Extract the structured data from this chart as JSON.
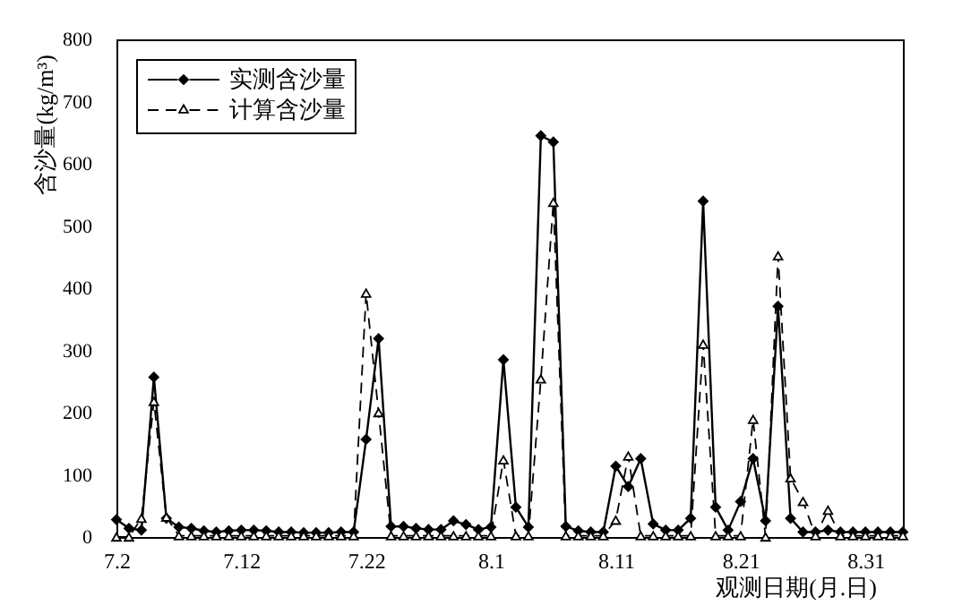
{
  "chart_data": {
    "type": "line",
    "xlabel": "观测日期(月.日)",
    "ylabel": "含沙量(kg/m³)",
    "x": [
      "--07-02",
      "--07-03",
      "--07-04",
      "--07-05",
      "--07-06",
      "--07-07",
      "--07-08",
      "--07-09",
      "--07-10",
      "--07-11",
      "--07-12",
      "--07-13",
      "--07-14",
      "--07-15",
      "--07-16",
      "--07-17",
      "--07-18",
      "--07-19",
      "--07-20",
      "--07-21",
      "--07-22",
      "--07-23",
      "--07-24",
      "--07-25",
      "--07-26",
      "--07-27",
      "--07-28",
      "--07-29",
      "--07-30",
      "--07-31",
      "--08-01",
      "--08-02",
      "--08-03",
      "--08-04",
      "--08-05",
      "--08-06",
      "--08-07",
      "--08-08",
      "--08-09",
      "--08-10",
      "--08-11",
      "--08-12",
      "--08-13",
      "--08-14",
      "--08-15",
      "--08-16",
      "--08-17",
      "--08-18",
      "--08-19",
      "--08-20",
      "--08-21",
      "--08-22",
      "--08-23",
      "--08-24",
      "--08-25",
      "--08-26",
      "--08-27",
      "--08-28",
      "--08-29",
      "--08-30",
      "--08-31",
      "--09-01",
      "--09-02",
      "--09-03"
    ],
    "series": [
      {
        "name": "实测含沙量",
        "color": "#000000",
        "marker": "diamond",
        "line_style": "solid",
        "values": [
          28,
          14,
          11,
          257,
          30,
          16,
          14,
          10,
          8,
          10,
          11,
          11,
          10,
          8,
          8,
          7,
          7,
          7,
          8,
          8,
          157,
          319,
          17,
          17,
          14,
          12,
          12,
          26,
          20,
          12,
          16,
          285,
          48,
          16,
          645,
          635,
          17,
          10,
          8,
          8,
          114,
          81,
          126,
          21,
          11,
          11,
          30,
          540,
          48,
          11,
          57,
          126,
          26,
          371,
          30,
          8,
          8,
          11,
          8,
          8,
          8,
          8,
          8,
          8
        ]
      },
      {
        "name": "计算含沙量",
        "color": "#000000",
        "marker": "triangle",
        "line_style": "dashed",
        "values": [
          0,
          0,
          30,
          218,
          32,
          2,
          2,
          2,
          2,
          2,
          2,
          2,
          2,
          2,
          2,
          2,
          2,
          2,
          2,
          2,
          392,
          200,
          2,
          2,
          2,
          2,
          2,
          2,
          2,
          2,
          2,
          124,
          2,
          2,
          254,
          538,
          2,
          2,
          2,
          2,
          27,
          130,
          2,
          2,
          2,
          2,
          2,
          310,
          2,
          2,
          2,
          189,
          0,
          452,
          95,
          57,
          2,
          43,
          2,
          2,
          2,
          2,
          2,
          2
        ]
      }
    ],
    "xlim": [
      "--07-02",
      "--09-03"
    ],
    "xticks": [
      {
        "value": "--07-02",
        "label": "7.2"
      },
      {
        "value": "--07-12",
        "label": "7.12"
      },
      {
        "value": "--07-22",
        "label": "7.22"
      },
      {
        "value": "--08-01",
        "label": "8.1"
      },
      {
        "value": "--08-11",
        "label": "8.11"
      },
      {
        "value": "--08-21",
        "label": "8.21"
      },
      {
        "value": "--08-31",
        "label": "8.31"
      }
    ],
    "ylim": [
      0,
      800
    ],
    "yticks": [
      0,
      100,
      200,
      300,
      400,
      500,
      600,
      700,
      800
    ],
    "legend": "top left"
  }
}
